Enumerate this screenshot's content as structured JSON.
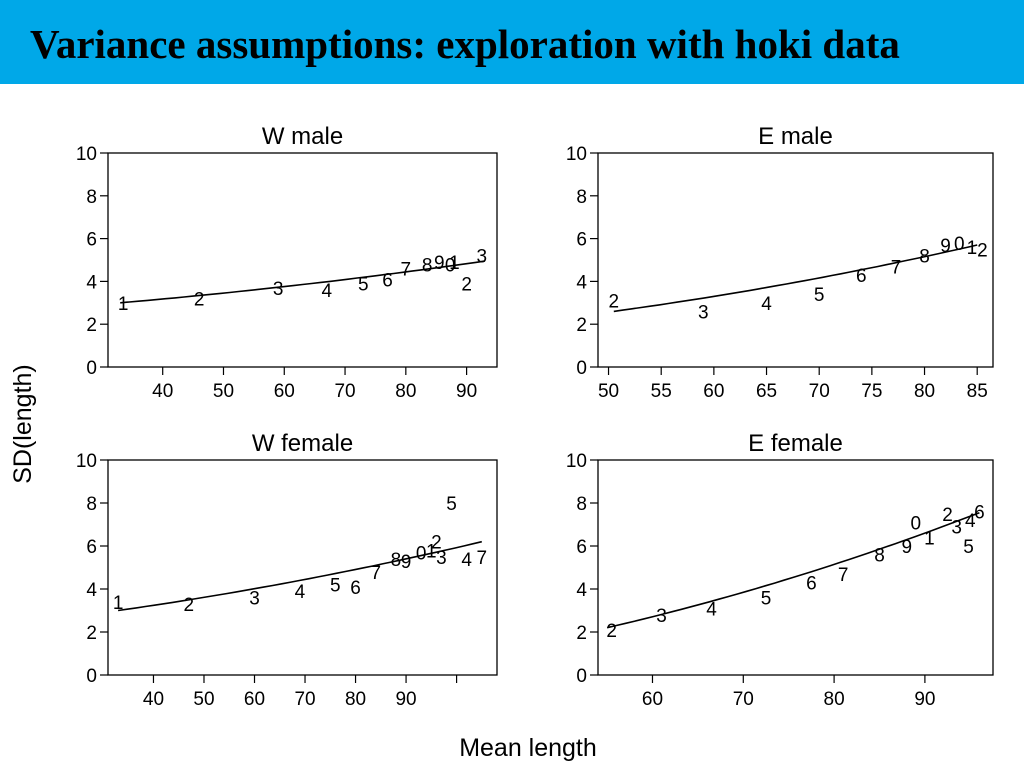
{
  "slide": {
    "title": "Variance assumptions: exploration with hoki data",
    "banner_color": "#00a8e8"
  },
  "chart_data": [
    {
      "type": "scatter",
      "title": "W male",
      "xlabel": "Mean length",
      "ylabel": "SD(length)",
      "xlim": [
        31,
        95
      ],
      "ylim": [
        0,
        10
      ],
      "xticks": [
        40,
        50,
        60,
        70,
        80,
        90
      ],
      "yticks": [
        0,
        2,
        4,
        6,
        8,
        10
      ],
      "points": [
        {
          "label": "1",
          "x": 33.5,
          "y": 3.0
        },
        {
          "label": "2",
          "x": 46,
          "y": 3.2
        },
        {
          "label": "3",
          "x": 59,
          "y": 3.7
        },
        {
          "label": "4",
          "x": 67,
          "y": 3.6
        },
        {
          "label": "5",
          "x": 73,
          "y": 3.9
        },
        {
          "label": "6",
          "x": 77,
          "y": 4.1
        },
        {
          "label": "7",
          "x": 80,
          "y": 4.6
        },
        {
          "label": "8",
          "x": 83.5,
          "y": 4.8
        },
        {
          "label": "9",
          "x": 85.5,
          "y": 4.9
        },
        {
          "label": "0",
          "x": 87.3,
          "y": 4.8
        },
        {
          "label": "1",
          "x": 88,
          "y": 4.9
        },
        {
          "label": "2",
          "x": 90,
          "y": 3.9
        },
        {
          "label": "3",
          "x": 92.5,
          "y": 5.2
        }
      ],
      "fit": {
        "x": [
          33,
          93
        ],
        "y": [
          3.0,
          4.95
        ]
      }
    },
    {
      "type": "scatter",
      "title": "E male",
      "xlabel": "Mean length",
      "ylabel": "SD(length)",
      "xlim": [
        49,
        86.5
      ],
      "ylim": [
        0,
        10
      ],
      "xticks": [
        50,
        55,
        60,
        65,
        70,
        75,
        80,
        85
      ],
      "yticks": [
        0,
        2,
        4,
        6,
        8,
        10
      ],
      "points": [
        {
          "label": "2",
          "x": 50.5,
          "y": 3.1
        },
        {
          "label": "3",
          "x": 59,
          "y": 2.6
        },
        {
          "label": "4",
          "x": 65,
          "y": 3.0
        },
        {
          "label": "5",
          "x": 70,
          "y": 3.4
        },
        {
          "label": "6",
          "x": 74,
          "y": 4.3
        },
        {
          "label": "7",
          "x": 77.3,
          "y": 4.7
        },
        {
          "label": "8",
          "x": 80,
          "y": 5.2
        },
        {
          "label": "9",
          "x": 82,
          "y": 5.7
        },
        {
          "label": "0",
          "x": 83.3,
          "y": 5.8
        },
        {
          "label": "1",
          "x": 84.5,
          "y": 5.6
        },
        {
          "label": "2",
          "x": 85.5,
          "y": 5.5
        }
      ],
      "fit": {
        "x": [
          50.5,
          85
        ],
        "y": [
          2.6,
          5.7
        ]
      }
    },
    {
      "type": "scatter",
      "title": "W female",
      "xlabel": "Mean length",
      "ylabel": "SD(length)",
      "xlim": [
        31,
        108
      ],
      "ylim": [
        0,
        10
      ],
      "xticks": [
        40,
        50,
        60,
        70,
        80,
        90,
        100
      ],
      "xticklabels": [
        "40",
        "50",
        "60",
        "70",
        "80",
        "90",
        ""
      ],
      "yticks": [
        0,
        2,
        4,
        6,
        8,
        10
      ],
      "points": [
        {
          "label": "1",
          "x": 33,
          "y": 3.4
        },
        {
          "label": "2",
          "x": 47,
          "y": 3.3
        },
        {
          "label": "3",
          "x": 60,
          "y": 3.6
        },
        {
          "label": "4",
          "x": 69,
          "y": 3.9
        },
        {
          "label": "5",
          "x": 76,
          "y": 4.2
        },
        {
          "label": "6",
          "x": 80,
          "y": 4.1
        },
        {
          "label": "7",
          "x": 84,
          "y": 4.8
        },
        {
          "label": "8",
          "x": 88,
          "y": 5.4
        },
        {
          "label": "9",
          "x": 90,
          "y": 5.3
        },
        {
          "label": "0",
          "x": 93,
          "y": 5.7
        },
        {
          "label": "1",
          "x": 95,
          "y": 5.8
        },
        {
          "label": "2",
          "x": 96,
          "y": 6.2
        },
        {
          "label": "3",
          "x": 97,
          "y": 5.5
        },
        {
          "label": "4",
          "x": 102,
          "y": 5.4
        },
        {
          "label": "5",
          "x": 99,
          "y": 8.0
        },
        {
          "label": "7",
          "x": 105,
          "y": 5.5
        }
      ],
      "fit": {
        "x": [
          33,
          105
        ],
        "y": [
          3.0,
          6.2
        ]
      }
    },
    {
      "type": "scatter",
      "title": "E female",
      "xlabel": "Mean length",
      "ylabel": "SD(length)",
      "xlim": [
        54,
        97.5
      ],
      "ylim": [
        0,
        10
      ],
      "xticks": [
        60,
        70,
        80,
        90
      ],
      "yticks": [
        0,
        2,
        4,
        6,
        8,
        10
      ],
      "points": [
        {
          "label": "2",
          "x": 55.5,
          "y": 2.1
        },
        {
          "label": "3",
          "x": 61,
          "y": 2.8
        },
        {
          "label": "4",
          "x": 66.5,
          "y": 3.1
        },
        {
          "label": "5",
          "x": 72.5,
          "y": 3.6
        },
        {
          "label": "6",
          "x": 77.5,
          "y": 4.3
        },
        {
          "label": "7",
          "x": 81,
          "y": 4.7
        },
        {
          "label": "8",
          "x": 85,
          "y": 5.6
        },
        {
          "label": "9",
          "x": 88,
          "y": 6.0
        },
        {
          "label": "0",
          "x": 89,
          "y": 7.1
        },
        {
          "label": "1",
          "x": 90.5,
          "y": 6.4
        },
        {
          "label": "2",
          "x": 92.5,
          "y": 7.5
        },
        {
          "label": "3",
          "x": 93.5,
          "y": 6.9
        },
        {
          "label": "4",
          "x": 95,
          "y": 7.2
        },
        {
          "label": "5",
          "x": 94.8,
          "y": 6.0
        },
        {
          "label": "6",
          "x": 96,
          "y": 7.6
        }
      ],
      "fit": {
        "x": [
          55,
          96
        ],
        "y": [
          2.2,
          7.55
        ]
      }
    }
  ]
}
